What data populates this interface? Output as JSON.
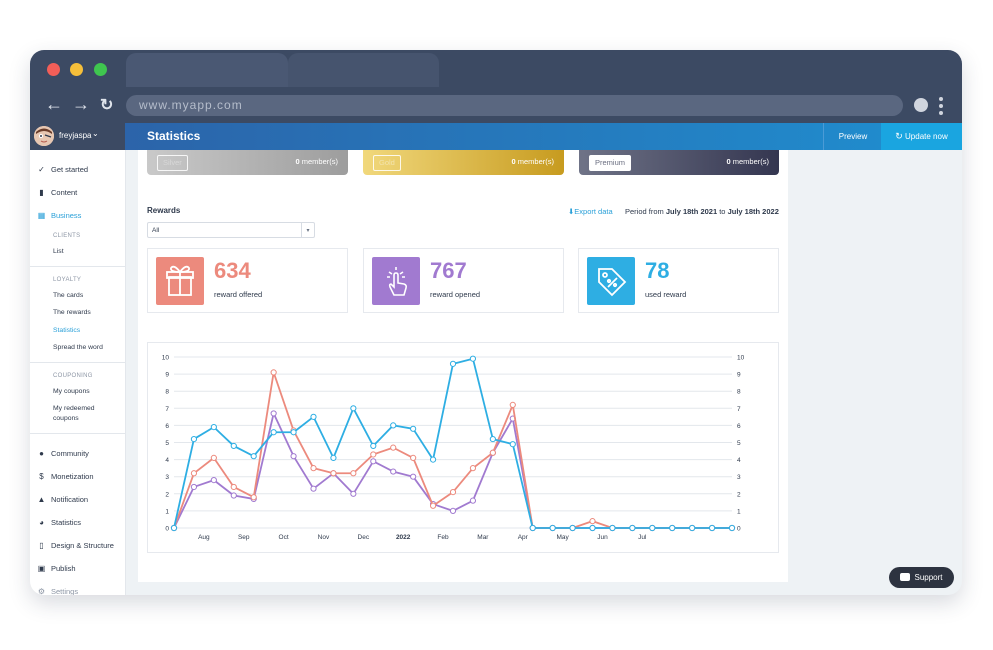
{
  "browser": {
    "url": "www.myapp.com",
    "colors": {
      "close": "#f25e58",
      "minimize": "#f6bf3a",
      "maximize": "#3fc64f"
    }
  },
  "header": {
    "username": "freyjaspa",
    "page_title": "Statistics",
    "preview_label": "Preview",
    "update_label": "Update now"
  },
  "sidebar": {
    "items": {
      "get_started": "Get started",
      "content": "Content",
      "business": "Business",
      "community": "Community",
      "monetization": "Monetization",
      "notification": "Notification",
      "statistics": "Statistics",
      "design": "Design & Structure",
      "publish": "Publish",
      "settings": "Settings"
    },
    "clients_section": "CLIENTS",
    "list": "List",
    "loyalty_section": "LOYALTY",
    "the_cards": "The cards",
    "the_rewards": "The rewards",
    "statistics_sub": "Statistics",
    "spread": "Spread the word",
    "couponing_section": "COUPONING",
    "my_coupons": "My coupons",
    "my_redeemed_1": "My redeemed",
    "my_redeemed_2": "coupons"
  },
  "tiers": [
    {
      "name": "Silver",
      "count": "0",
      "suffix": " member(s)"
    },
    {
      "name": "Gold",
      "count": "0",
      "suffix": " member(s)"
    },
    {
      "name": "Premium",
      "count": "0",
      "suffix": " member(s)"
    }
  ],
  "rewards": {
    "title": "Rewards",
    "filter": "All",
    "export": "Export data",
    "period_prefix": "Period from ",
    "period_start": "July 18th 2021",
    "period_mid": " to ",
    "period_end": "July 18th 2022"
  },
  "stats": [
    {
      "value": "634",
      "label": "reward offered",
      "color": "#ec8a7d"
    },
    {
      "value": "767",
      "label": "reward opened",
      "color": "#a17ad0"
    },
    {
      "value": "78",
      "label": "used reward",
      "color": "#2eaee3"
    }
  ],
  "support_label": "Support",
  "chart_data": {
    "type": "line",
    "x_labels": [
      "Aug",
      "Sep",
      "Oct",
      "Nov",
      "Dec",
      "2022",
      "Feb",
      "Mar",
      "Apr",
      "May",
      "Jun",
      "Jul"
    ],
    "ylim": [
      0,
      10
    ],
    "yticks": [
      "0",
      "1",
      "2",
      "3",
      "4",
      "5",
      "6",
      "7",
      "8",
      "9",
      "10"
    ],
    "grid": true,
    "series": [
      {
        "color": "#2eaee3",
        "values": [
          0,
          5.2,
          5.9,
          4.8,
          4.2,
          5.6,
          5.6,
          6.5,
          4.1,
          7.0,
          4.8,
          6.0,
          5.8,
          4.0,
          9.6,
          9.9,
          5.2,
          4.9,
          0,
          0,
          0,
          0,
          0,
          0,
          0,
          0,
          0,
          0,
          0
        ]
      },
      {
        "color": "#ec8a7d",
        "values": [
          0,
          3.2,
          4.1,
          2.4,
          1.8,
          9.1,
          5.7,
          3.5,
          3.2,
          3.2,
          4.3,
          4.7,
          4.1,
          1.3,
          2.1,
          3.5,
          4.4,
          7.2,
          0,
          0,
          0,
          0.4,
          0,
          0,
          0,
          0,
          0,
          0,
          0
        ]
      },
      {
        "color": "#a17ad0",
        "values": [
          0,
          2.4,
          2.8,
          1.9,
          1.7,
          6.7,
          4.2,
          2.3,
          3.2,
          2.0,
          3.9,
          3.3,
          3.0,
          1.4,
          1.0,
          1.6,
          4.4,
          6.4,
          0,
          0,
          0,
          0,
          0,
          0,
          0,
          0,
          0,
          0,
          0
        ]
      }
    ]
  }
}
